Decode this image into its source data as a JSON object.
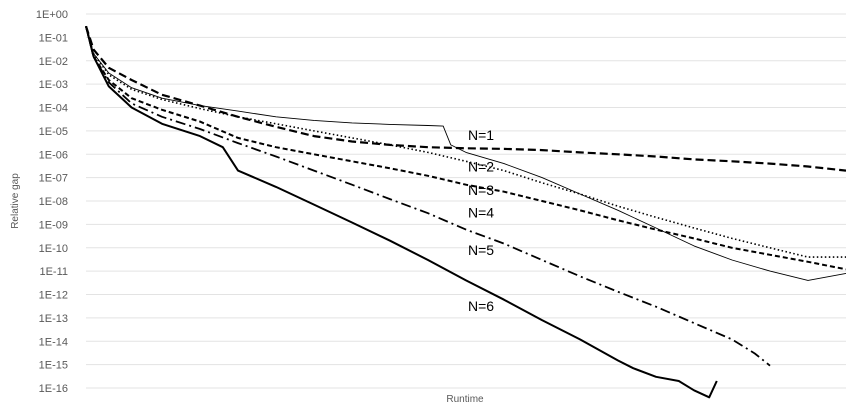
{
  "chart_data": {
    "type": "line",
    "title": "",
    "xlabel": "Runtime",
    "ylabel": "Relative gap",
    "y_scale": "log",
    "grid": true,
    "legend": "none",
    "xlim": [
      0,
      100
    ],
    "ylim": [
      1e-16,
      1
    ],
    "y_ticks": [
      "1E+00",
      "1E-01",
      "1E-02",
      "1E-03",
      "1E-04",
      "1E-05",
      "1E-06",
      "1E-07",
      "1E-08",
      "1E-09",
      "1E-10",
      "1E-11",
      "1E-12",
      "1E-13",
      "1E-14",
      "1E-15",
      "1E-16"
    ],
    "series": [
      {
        "name": "N=1",
        "style": "dashed-heavy",
        "x": [
          0,
          1,
          3,
          6,
          10,
          15,
          20,
          25,
          30,
          35,
          40,
          45,
          50,
          55,
          60,
          65,
          70,
          75,
          80,
          85,
          90,
          95,
          100
        ],
        "y": [
          0.3,
          0.03,
          0.005,
          0.0015,
          0.00035,
          0.00012,
          4e-05,
          1.5e-05,
          6e-06,
          3.5e-06,
          2.5e-06,
          2e-06,
          1.8e-06,
          1.7e-06,
          1.5e-06,
          1.2e-06,
          1e-06,
          8e-07,
          6e-07,
          5e-07,
          4e-07,
          3e-07,
          2e-07
        ]
      },
      {
        "name": "N=2",
        "style": "thin-solid",
        "x": [
          0,
          1,
          3,
          6,
          10,
          15,
          20,
          25,
          30,
          35,
          40,
          45,
          47,
          48,
          50,
          55,
          60,
          65,
          70,
          75,
          80,
          85,
          90,
          95,
          100
        ],
        "y": [
          0.3,
          0.02,
          0.003,
          0.0007,
          0.00025,
          0.00012,
          7e-05,
          4e-05,
          2.8e-05,
          2.2e-05,
          1.9e-05,
          1.7e-05,
          1.6e-05,
          2.5e-06,
          1.2e-06,
          4e-07,
          1e-07,
          2e-08,
          4e-09,
          7e-10,
          1.2e-10,
          3e-11,
          1e-11,
          4e-12,
          8e-12
        ]
      },
      {
        "name": "N=3",
        "style": "dotted",
        "x": [
          0,
          1,
          3,
          6,
          10,
          15,
          20,
          25,
          30,
          35,
          40,
          45,
          50,
          55,
          60,
          65,
          70,
          75,
          80,
          85,
          90,
          95,
          100
        ],
        "y": [
          0.3,
          0.02,
          0.0025,
          0.0006,
          0.00022,
          9e-05,
          4e-05,
          2e-05,
          1e-05,
          5e-06,
          2.5e-06,
          1.2e-06,
          5e-07,
          2e-07,
          6e-08,
          2e-08,
          6e-09,
          2e-09,
          7e-10,
          2.5e-10,
          1e-10,
          4e-11,
          4e-11
        ]
      },
      {
        "name": "N=4",
        "style": "dashed-short",
        "x": [
          0,
          1,
          3,
          6,
          10,
          15,
          20,
          25,
          30,
          35,
          40,
          45,
          50,
          55,
          60,
          65,
          70,
          75,
          80,
          85,
          90,
          95,
          100
        ],
        "y": [
          0.3,
          0.015,
          0.0015,
          0.00025,
          8e-05,
          2.5e-05,
          5e-06,
          2e-06,
          1e-06,
          5e-07,
          2.5e-07,
          1.2e-07,
          5e-08,
          2.5e-08,
          1e-08,
          4e-09,
          1.5e-09,
          6e-10,
          2.5e-10,
          1e-10,
          5e-11,
          2.5e-11,
          1.2e-11
        ]
      },
      {
        "name": "N=5",
        "style": "dash-dot",
        "x": [
          0,
          1,
          3,
          6,
          10,
          15,
          20,
          25,
          30,
          35,
          40,
          45,
          50,
          55,
          60,
          65,
          70,
          75,
          80,
          85,
          88,
          90
        ],
        "y": [
          0.3,
          0.015,
          0.0012,
          0.00015,
          4e-05,
          1.2e-05,
          3e-06,
          8e-07,
          2e-07,
          5e-08,
          1.2e-08,
          3e-09,
          6e-10,
          1.5e-10,
          3e-11,
          6e-12,
          1.3e-12,
          3e-13,
          6e-14,
          1.2e-14,
          3e-15,
          9e-16
        ]
      },
      {
        "name": "N=6",
        "style": "solid-heavy",
        "x": [
          0,
          1,
          3,
          6,
          10,
          15,
          18,
          20,
          25,
          30,
          35,
          40,
          45,
          50,
          55,
          60,
          65,
          70,
          72,
          75,
          78,
          80,
          82,
          83
        ],
        "y": [
          0.3,
          0.015,
          0.0008,
          0.0001,
          2e-05,
          6e-06,
          2e-06,
          2e-07,
          4e-08,
          7e-09,
          1.2e-09,
          2e-10,
          3e-11,
          4e-12,
          6e-13,
          8e-14,
          1.2e-14,
          1.5e-15,
          7e-16,
          3e-16,
          2e-16,
          8e-17,
          4e-17,
          2e-16
        ]
      }
    ]
  }
}
